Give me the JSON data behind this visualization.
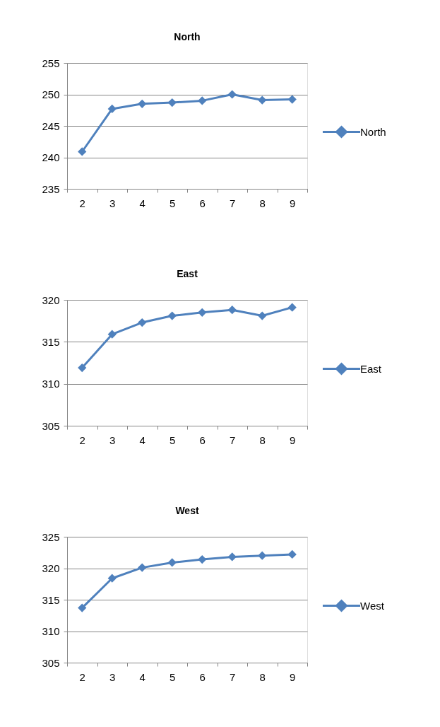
{
  "chart_data": [
    {
      "type": "line",
      "title": "North",
      "categories": [
        "2",
        "3",
        "4",
        "5",
        "6",
        "7",
        "8",
        "9"
      ],
      "series": [
        {
          "name": "North",
          "color": "#4f81bd",
          "values": [
            240.9,
            247.7,
            248.5,
            248.7,
            249.0,
            250.0,
            249.1,
            249.2
          ]
        }
      ],
      "ylim": [
        235,
        255
      ],
      "yticks": [
        235,
        240,
        245,
        250,
        255
      ],
      "grid": "y",
      "legend": "right",
      "marker": "diamond"
    },
    {
      "type": "line",
      "title": "East",
      "categories": [
        "2",
        "3",
        "4",
        "5",
        "6",
        "7",
        "8",
        "9"
      ],
      "series": [
        {
          "name": "East",
          "color": "#4f81bd",
          "values": [
            311.9,
            315.9,
            317.3,
            318.1,
            318.5,
            318.8,
            318.1,
            319.1
          ]
        }
      ],
      "ylim": [
        305,
        320
      ],
      "yticks": [
        305,
        310,
        315,
        320
      ],
      "grid": "y",
      "legend": "right",
      "marker": "diamond"
    },
    {
      "type": "line",
      "title": "West",
      "categories": [
        "2",
        "3",
        "4",
        "5",
        "6",
        "7",
        "8",
        "9"
      ],
      "series": [
        {
          "name": "West",
          "color": "#4f81bd",
          "values": [
            313.7,
            318.4,
            320.1,
            320.9,
            321.4,
            321.8,
            322.0,
            322.2
          ]
        }
      ],
      "ylim": [
        305,
        325
      ],
      "yticks": [
        305,
        310,
        315,
        320,
        325
      ],
      "grid": "y",
      "legend": "right",
      "marker": "diamond"
    }
  ]
}
